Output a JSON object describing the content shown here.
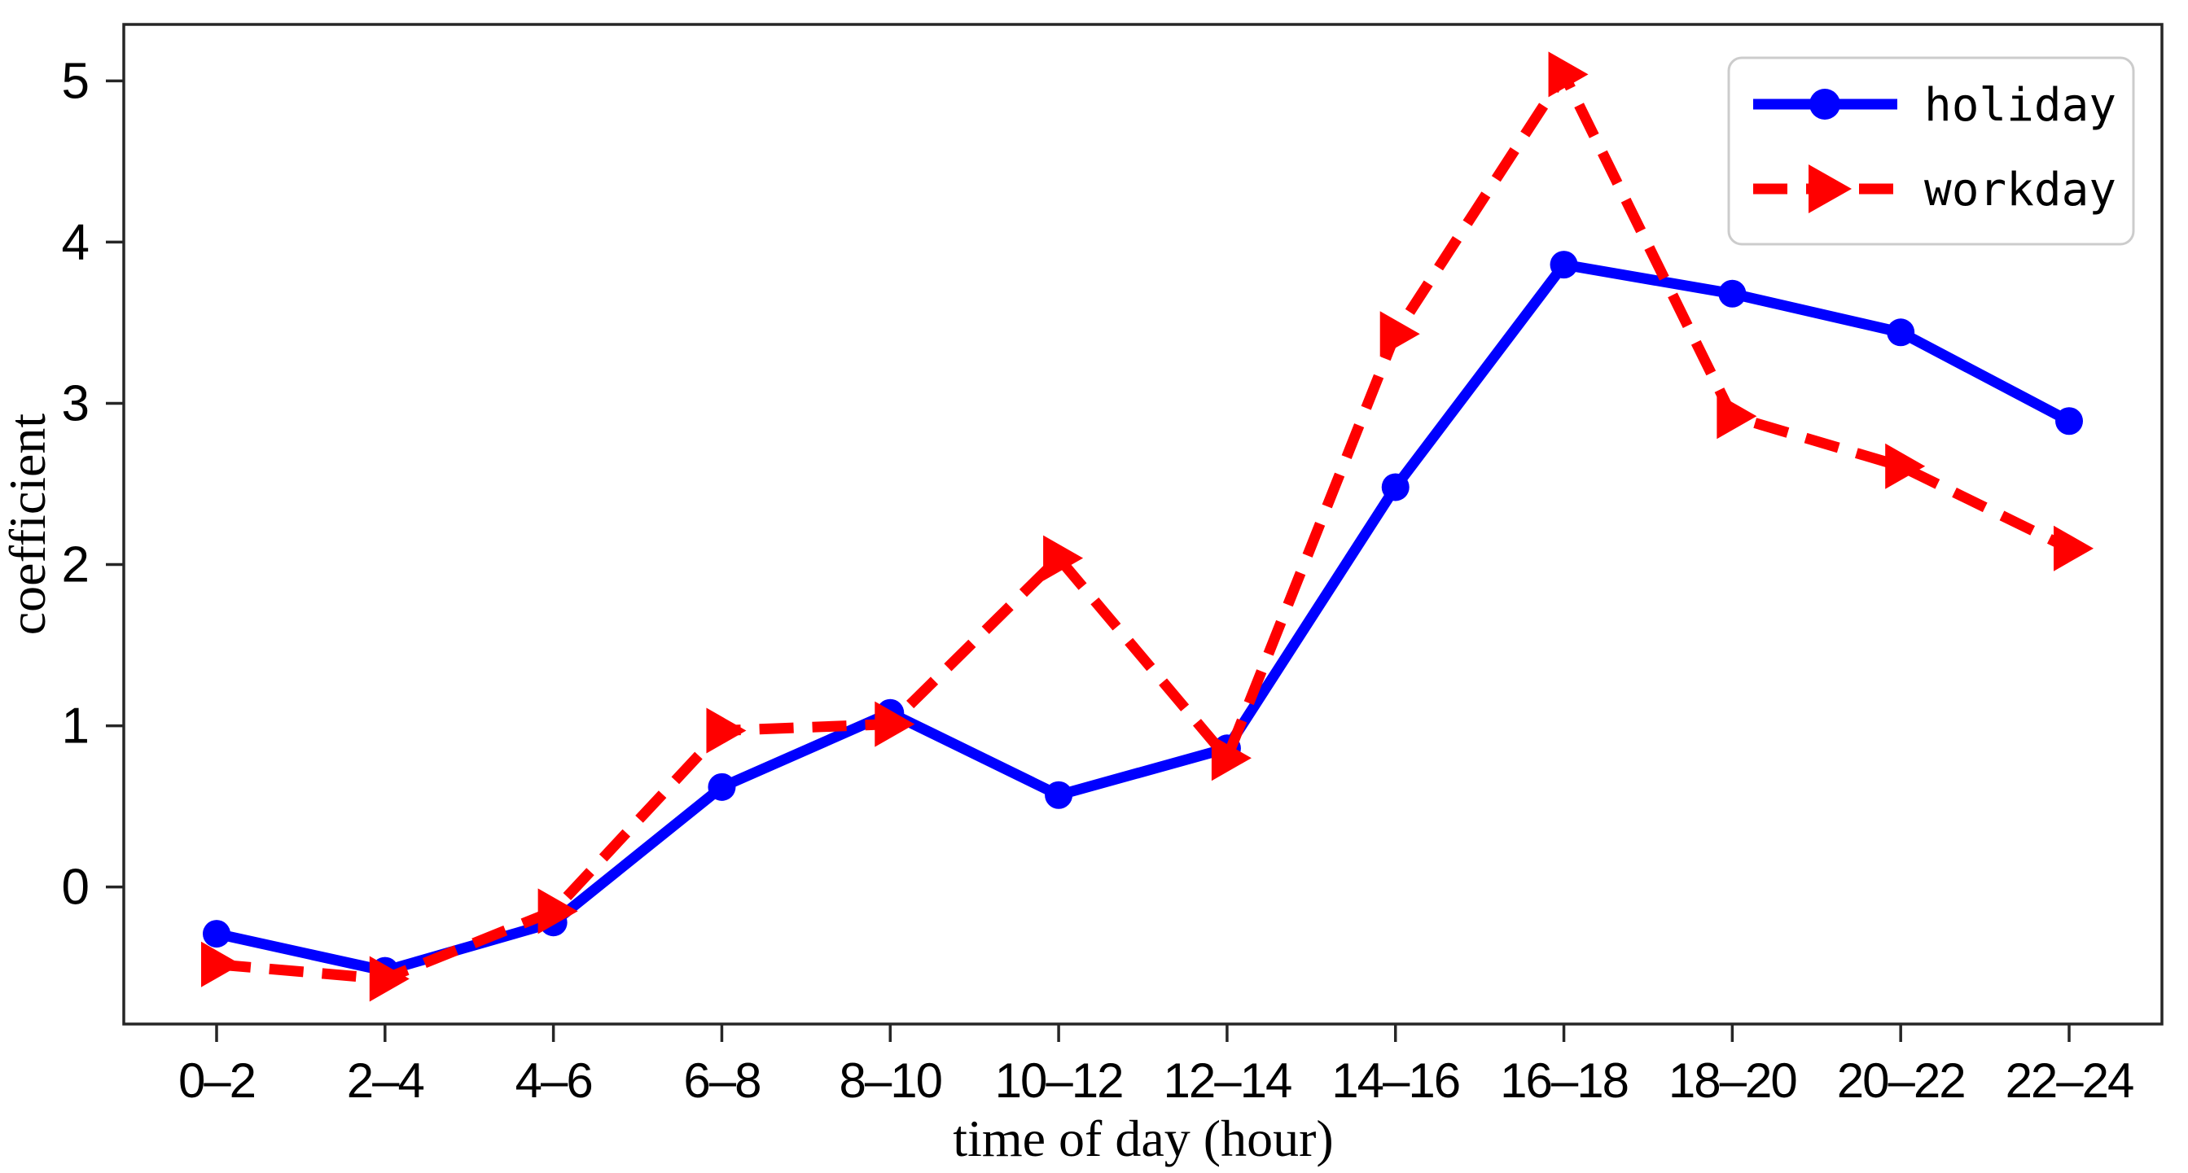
{
  "chart_data": {
    "type": "line",
    "title": "",
    "xlabel": "time of day (hour)",
    "ylabel": "coefficient",
    "categories": [
      "0–2",
      "2–4",
      "4–6",
      "6–8",
      "8–10",
      "10–12",
      "12–14",
      "14–16",
      "16–18",
      "18–20",
      "20–22",
      "22–24"
    ],
    "series": [
      {
        "name": "holiday",
        "color": "#0000ff",
        "line_style": "solid",
        "marker": "circle",
        "values": [
          -0.29,
          -0.52,
          -0.22,
          0.62,
          1.08,
          0.57,
          0.86,
          2.48,
          3.86,
          3.68,
          3.44,
          2.89
        ]
      },
      {
        "name": "workday",
        "color": "#ff0000",
        "line_style": "dashed",
        "marker": "triangle-right",
        "values": [
          -0.48,
          -0.57,
          -0.15,
          0.97,
          1.01,
          2.04,
          0.8,
          3.43,
          5.04,
          2.92,
          2.61,
          2.1
        ]
      }
    ],
    "ylim": [
      -0.85,
      5.35
    ],
    "yticks": [
      0,
      1,
      2,
      3,
      4,
      5
    ],
    "grid": false,
    "legend_position": "top-right",
    "axis_color": "#262626",
    "background_color": "#ffffff"
  }
}
